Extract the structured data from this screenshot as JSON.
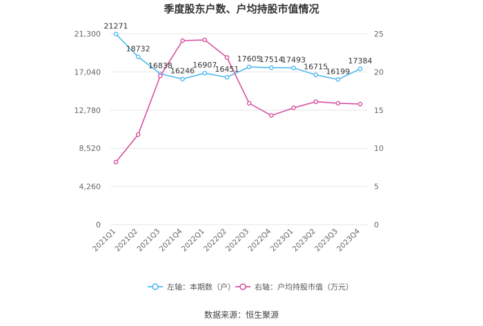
{
  "chart_data": {
    "type": "line",
    "title": "季度股东户数、户均持股市值情况",
    "categories": [
      "2021Q1",
      "2021Q2",
      "2021Q3",
      "2021Q4",
      "2022Q1",
      "2022Q2",
      "2022Q3",
      "2022Q4",
      "2023Q1",
      "2023Q2",
      "2023Q3",
      "2023Q4"
    ],
    "left_axis": {
      "ticks": [
        "0",
        "4,260",
        "8,520",
        "12,780",
        "17,040",
        "21,300"
      ],
      "ylim": [
        0,
        21300
      ]
    },
    "right_axis": {
      "ticks": [
        "0",
        "5",
        "10",
        "15",
        "20",
        "25"
      ],
      "ylim": [
        0,
        25
      ]
    },
    "series": [
      {
        "name": "左轴：本期数（户）",
        "axis": "left",
        "color": "#4db8f0",
        "values": [
          21271,
          18732,
          16838,
          16246,
          16907,
          16451,
          17605,
          17514,
          17493,
          16715,
          16199,
          17384
        ],
        "labels": [
          "21271",
          "18732",
          "16838",
          "16246",
          "16907",
          "16451",
          "17605",
          "17514",
          "17493",
          "16715",
          "16199",
          "17384"
        ]
      },
      {
        "name": "右轴：户均持股市值（万元）",
        "axis": "right",
        "color": "#d64f9f",
        "values": [
          8.2,
          11.8,
          19.5,
          24.1,
          24.2,
          21.9,
          15.9,
          14.3,
          15.3,
          16.1,
          15.9,
          15.8
        ]
      }
    ],
    "grid": true,
    "legend_position": "bottom"
  },
  "source": "数据来源：恒生聚源"
}
